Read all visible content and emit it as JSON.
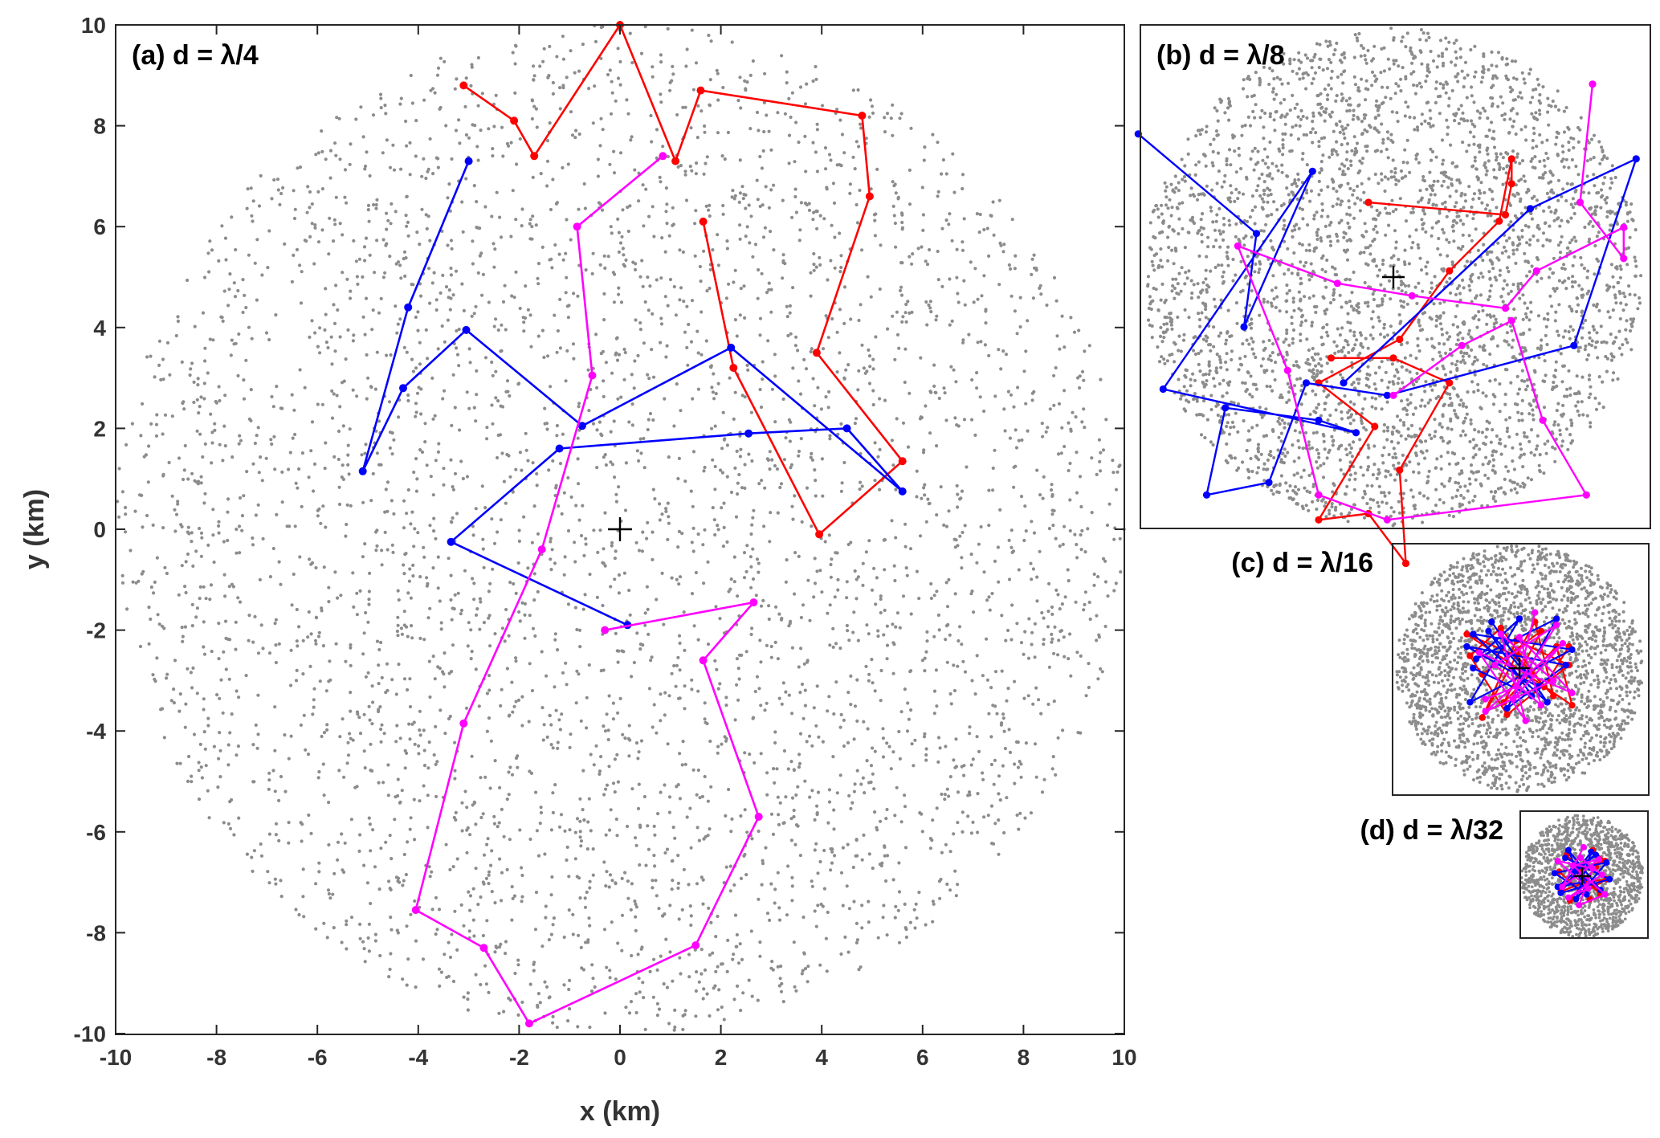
{
  "chart_data": [
    {
      "id": "a",
      "type": "scatter",
      "title": "(a) d = λ/4",
      "xlabel": "x (km)",
      "ylabel": "y (km)",
      "xlim": [
        -10,
        10
      ],
      "ylim": [
        -10,
        10
      ],
      "xticks": [
        "-10",
        "-8",
        "-6",
        "-4",
        "-2",
        "0",
        "2",
        "4",
        "6",
        "8",
        "10"
      ],
      "yticks": [
        "-10",
        "-8",
        "-6",
        "-4",
        "-2",
        "0",
        "2",
        "4",
        "6",
        "8",
        "10"
      ],
      "grid": false,
      "background_points": {
        "description_region": "disk",
        "radius": 10,
        "count": 4000,
        "color": "#8c8c8c"
      },
      "center_marker": {
        "x": 0,
        "y": 0,
        "symbol": "+"
      },
      "series": [
        {
          "color": "#ff0000",
          "x": [
            -3.1,
            -2.1,
            -1.7,
            0,
            1.1,
            1.6,
            4.8,
            4.95,
            3.9,
            5.6,
            3.95,
            2.25,
            1.65
          ],
          "y": [
            8.8,
            8.1,
            7.4,
            10,
            7.3,
            8.7,
            8.2,
            6.6,
            3.5,
            1.35,
            -0.1,
            3.2,
            6.1
          ]
        },
        {
          "color": "#0000ff",
          "x": [
            -3,
            -4.2,
            -5.1,
            -4.3,
            -3.05,
            -0.75,
            2.2,
            5.6,
            4.5,
            2.55,
            -1.2,
            -3.35,
            0.15
          ],
          "y": [
            7.3,
            4.4,
            1.15,
            2.8,
            3.95,
            2.05,
            3.6,
            0.75,
            2,
            1.9,
            1.6,
            -0.25,
            -1.9
          ]
        },
        {
          "color": "#ff00ff",
          "x": [
            0.85,
            -0.85,
            -0.55,
            -1.55,
            -3.1,
            -4.05,
            -2.7,
            -1.8,
            1.5,
            2.75,
            1.65,
            2.65,
            -0.3
          ],
          "y": [
            7.4,
            6,
            3.05,
            -0.4,
            -3.85,
            -7.55,
            -8.3,
            -9.8,
            -8.25,
            -5.7,
            -2.6,
            -1.45,
            -2
          ]
        }
      ]
    },
    {
      "id": "b",
      "type": "scatter",
      "title": "(b) d = λ/8",
      "background_points": {
        "description_region": "disk",
        "count": 3500,
        "color": "#8c8c8c"
      },
      "center_marker": {
        "x": 0,
        "y": 0,
        "symbol": "+"
      },
      "series": [
        {
          "color": "#ff0000",
          "x": [
            -0.2,
            0.9,
            0.95,
            0.95,
            0.85,
            0.45,
            0.05,
            -0.6,
            -0.15,
            -0.6,
            -0.2,
            0.1,
            0.05,
            0.45,
            0.0,
            -0.5
          ],
          "y": [
            0.6,
            0.5,
            0.75,
            0.95,
            0.45,
            0.05,
            -0.5,
            -0.85,
            -1.2,
            -1.95,
            -1.9,
            -2.3,
            -1.55,
            -0.85,
            -0.65,
            -0.65
          ]
        },
        {
          "color": "#0000ff",
          "x": [
            -2.05,
            -1.1,
            -1.2,
            -0.65,
            -1.85,
            -0.3,
            -0.6,
            -1.35,
            -1.5,
            -1.0,
            -0.7,
            -0.05,
            1.45,
            1.95,
            1.1,
            -0.4
          ],
          "y": [
            1.15,
            0.35,
            -0.4,
            0.85,
            -0.9,
            -1.25,
            -1.15,
            -1.05,
            -1.75,
            -1.65,
            -0.85,
            -0.95,
            -0.55,
            0.95,
            0.55,
            -0.85
          ]
        },
        {
          "color": "#ff00ff",
          "x": [
            1.6,
            1.5,
            1.85,
            1.85,
            1.15,
            0.9,
            0.15,
            -0.45,
            -1.25,
            -0.85,
            -0.6,
            -0.05,
            1.55,
            1.2,
            0.95,
            0.55,
            0.0
          ],
          "y": [
            1.55,
            0.6,
            0.15,
            0.4,
            0.05,
            -0.25,
            -0.15,
            -0.05,
            0.25,
            -0.75,
            -1.75,
            -1.95,
            -1.75,
            -1.15,
            -0.35,
            -0.55,
            -0.95
          ]
        }
      ]
    },
    {
      "id": "c",
      "type": "scatter",
      "title": "(c) d = λ/16",
      "background_points": {
        "description_region": "disk",
        "count": 2200,
        "color": "#8c8c8c"
      },
      "center_marker": {
        "x": 0,
        "y": 0,
        "symbol": "+"
      },
      "series": [
        {
          "color": "#ff0000",
          "x": [
            -0.6,
            0.35,
            -0.25,
            0.6,
            0.85,
            -0.85,
            -0.05,
            0.55,
            0.25,
            -0.6,
            -0.05,
            0.8,
            -0.2,
            -0.8,
            -0.3,
            0.4,
            0.8
          ],
          "y": [
            -0.1,
            0.6,
            -0.55,
            0.35,
            -0.6,
            0.55,
            0.2,
            -0.45,
            0.75,
            -0.8,
            0.45,
            0.05,
            -0.75,
            0.2,
            0.65,
            -0.3,
            0.35
          ]
        },
        {
          "color": "#0000ff",
          "x": [
            -0.45,
            0.45,
            -0.75,
            0.85,
            -0.8,
            0.0,
            -0.7,
            0.6,
            -0.2,
            0.75,
            -0.85,
            0.3,
            -0.5,
            0.2,
            -0.75
          ],
          "y": [
            0.75,
            -0.55,
            0.55,
            0.3,
            -0.55,
            0.8,
            0.15,
            0.8,
            -0.65,
            0.05,
            0.35,
            -0.3,
            0.6,
            -0.45,
            0.0
          ]
        },
        {
          "color": "#ff00ff",
          "x": [
            0.25,
            -0.1,
            0.7,
            -0.55,
            0.55,
            -0.3,
            0.1,
            -0.65,
            0.85,
            0.0,
            0.35,
            -0.4,
            0.6,
            -0.05,
            -0.55
          ],
          "y": [
            0.9,
            -0.5,
            0.4,
            -0.7,
            -0.2,
            0.55,
            -0.85,
            0.25,
            -0.4,
            0.5,
            -0.6,
            0.05,
            0.7,
            -0.3,
            -0.5
          ]
        }
      ]
    },
    {
      "id": "d",
      "type": "scatter",
      "title": "(d) d = λ/32",
      "background_points": {
        "description_region": "disk",
        "count": 1400,
        "color": "#8c8c8c"
      },
      "center_marker": {
        "x": 0,
        "y": 0,
        "symbol": "+"
      },
      "series": [
        {
          "color": "#ff0000",
          "x": [
            -0.5,
            0.6,
            -0.2,
            0.75,
            0.35,
            -0.7,
            0.1,
            0.8,
            -0.4,
            0.45,
            -0.75,
            0.25
          ],
          "y": [
            0.7,
            -0.6,
            0.2,
            0.5,
            0.85,
            -0.5,
            -0.2,
            -0.1,
            -0.8,
            0.3,
            0.15,
            -0.75
          ]
        },
        {
          "color": "#0000ff",
          "x": [
            -0.55,
            0.9,
            -0.7,
            0.3,
            -0.2,
            0.8,
            -0.9,
            0.15,
            -0.45,
            0.6,
            -0.3,
            0.45,
            -0.8,
            0.0
          ],
          "y": [
            0.6,
            -0.1,
            -0.55,
            0.8,
            -0.75,
            0.45,
            0.1,
            -0.6,
            0.85,
            -0.45,
            0.2,
            0.7,
            -0.35,
            -0.2
          ]
        },
        {
          "color": "#ff00ff",
          "x": [
            0.05,
            -0.65,
            0.55,
            -0.3,
            0.75,
            -0.1,
            0.35,
            -0.8,
            0.2,
            -0.45,
            0.65,
            -0.05
          ],
          "y": [
            0.95,
            -0.35,
            0.55,
            0.35,
            -0.6,
            -0.95,
            0.25,
            0.5,
            -0.4,
            -0.7,
            0.05,
            0.6
          ]
        }
      ]
    }
  ]
}
